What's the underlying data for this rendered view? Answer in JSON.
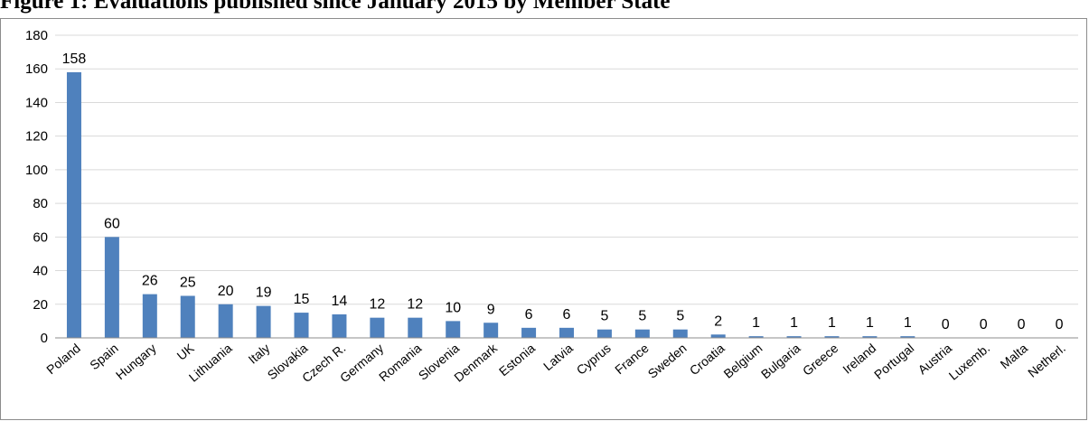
{
  "figure": {
    "title": "Figure 1: Evaluations published since January 2015 by Member State"
  },
  "colors": {
    "bar": "#4f81bd",
    "grid": "#d9d9d9",
    "axis": "#8c8c8c"
  },
  "chart_data": {
    "type": "bar",
    "title": "Figure 1: Evaluations published since January 2015 by Member State",
    "xlabel": "",
    "ylabel": "",
    "ylim": [
      0,
      180
    ],
    "ytick_step": 20,
    "grid": true,
    "legend": "none",
    "categories": [
      "Poland",
      "Spain",
      "Hungary",
      "UK",
      "Lithuania",
      "Italy",
      "Slovakia",
      "Czech R.",
      "Germany",
      "Romania",
      "Slovenia",
      "Denmark",
      "Estonia",
      "Latvia",
      "Cyprus",
      "France",
      "Sweden",
      "Croatia",
      "Belgium",
      "Bulgaria",
      "Greece",
      "Ireland",
      "Portugal",
      "Austria",
      "Luxemb.",
      "Malta",
      "Netherl."
    ],
    "values": [
      158,
      60,
      26,
      25,
      20,
      19,
      15,
      14,
      12,
      12,
      10,
      9,
      6,
      6,
      5,
      5,
      5,
      2,
      1,
      1,
      1,
      1,
      1,
      0,
      0,
      0,
      0
    ]
  }
}
